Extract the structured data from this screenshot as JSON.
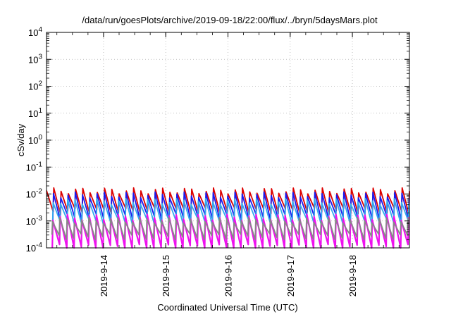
{
  "chart_data": {
    "type": "line",
    "title": "/data/run/goesPlots/archive/2019-09-18/22:00/flux/../bryn/5daysMars.plot",
    "xlabel": "Coordinated Universal Time (UTC)",
    "ylabel": "cSv/day",
    "yscale": "log",
    "ylim": [
      0.0001,
      10000
    ],
    "xlim": [
      "2019-09-13 02:00",
      "2019-09-18 22:00"
    ],
    "y_ticks": [
      {
        "base": "10",
        "exp": "-4",
        "value": 0.0001
      },
      {
        "base": "10",
        "exp": "-3",
        "value": 0.001
      },
      {
        "base": "10",
        "exp": "-2",
        "value": 0.01
      },
      {
        "base": "10",
        "exp": "-1",
        "value": 0.1
      },
      {
        "base": "10",
        "exp": "0",
        "value": 1
      },
      {
        "base": "10",
        "exp": "1",
        "value": 10
      },
      {
        "base": "10",
        "exp": "2",
        "value": 100
      },
      {
        "base": "10",
        "exp": "3",
        "value": 1000
      },
      {
        "base": "10",
        "exp": "4",
        "value": 10000
      }
    ],
    "x_ticks": [
      "2019-9-14",
      "2019-9-15",
      "2019-9-16",
      "2019-9-17",
      "2019-9-18"
    ],
    "grid": true,
    "series": [
      {
        "color": "#dd0000",
        "values": [
          0.0135,
          0.0022
        ],
        "period_hours": 2.8
      },
      {
        "color": "#1a1aee",
        "values": [
          0.0095,
          0.0013
        ],
        "period_hours": 2.8
      },
      {
        "color": "#33aaee",
        "values": [
          0.0055,
          0.0009
        ],
        "period_hours": 2.8
      },
      {
        "color": "#ee11ee",
        "values": [
          0.0014,
          0.0001
        ],
        "period_hours": 2.8
      },
      {
        "color": "#888888",
        "values": [
          0.0011,
          0.00025
        ],
        "period_hours": 2.8
      }
    ]
  }
}
